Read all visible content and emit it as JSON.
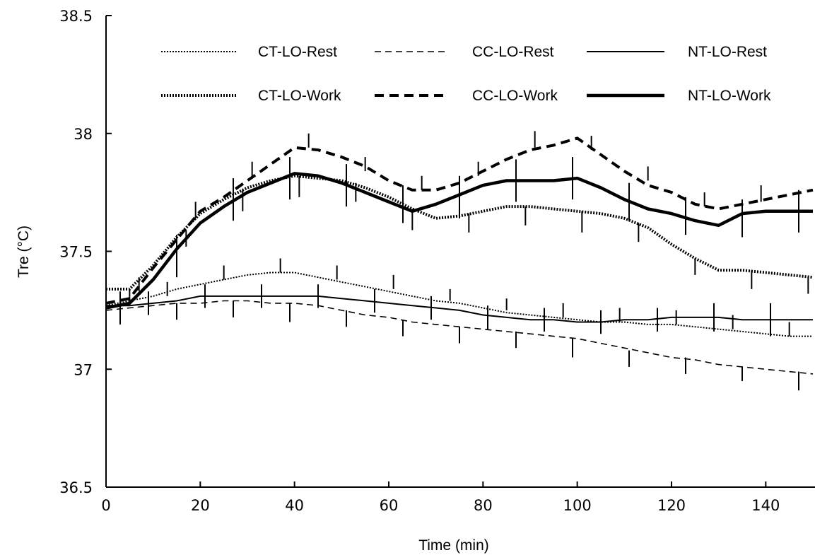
{
  "chart_data": {
    "type": "line",
    "title": "",
    "xlabel": "Time (min)",
    "ylabel": "Tre (°C)",
    "xlim": [
      0,
      150
    ],
    "ylim": [
      36.5,
      38.5
    ],
    "xticks": [
      0,
      20,
      40,
      60,
      80,
      100,
      120,
      140
    ],
    "yticks": [
      36.5,
      37,
      37.5,
      38,
      38.5
    ],
    "xtick_labels": [
      "0",
      "20",
      "40",
      "60",
      "80",
      "100",
      "120",
      "140"
    ],
    "ytick_labels": [
      "36.5",
      "37",
      "37.5",
      "38",
      "38.5"
    ],
    "grid": false,
    "legend": "top",
    "series": [
      {
        "name": "CT-LO-Rest",
        "style": "dotted-thin",
        "color": "#000000",
        "x": [
          0,
          5,
          10,
          15,
          20,
          25,
          30,
          35,
          40,
          45,
          50,
          55,
          60,
          65,
          70,
          75,
          80,
          85,
          90,
          95,
          100,
          105,
          110,
          115,
          120,
          125,
          130,
          135,
          140,
          145,
          150
        ],
        "y": [
          37.27,
          37.29,
          37.31,
          37.34,
          37.36,
          37.38,
          37.4,
          37.41,
          37.41,
          37.39,
          37.37,
          37.35,
          37.33,
          37.31,
          37.29,
          37.28,
          37.26,
          37.24,
          37.23,
          37.22,
          37.21,
          37.2,
          37.2,
          37.19,
          37.19,
          37.18,
          37.17,
          37.16,
          37.15,
          37.14,
          37.14
        ]
      },
      {
        "name": "CC-LO-Rest",
        "style": "dashed-thin",
        "color": "#000000",
        "x": [
          0,
          5,
          10,
          15,
          20,
          25,
          30,
          35,
          40,
          45,
          50,
          55,
          60,
          65,
          70,
          75,
          80,
          85,
          90,
          95,
          100,
          105,
          110,
          115,
          120,
          125,
          130,
          135,
          140,
          145,
          150
        ],
        "y": [
          37.25,
          37.26,
          37.27,
          37.28,
          37.28,
          37.29,
          37.29,
          37.28,
          37.28,
          37.27,
          37.25,
          37.23,
          37.22,
          37.2,
          37.19,
          37.18,
          37.17,
          37.16,
          37.15,
          37.14,
          37.13,
          37.11,
          37.09,
          37.07,
          37.05,
          37.04,
          37.02,
          37.01,
          37.0,
          36.99,
          36.98
        ]
      },
      {
        "name": "NT-LO-Rest",
        "style": "solid-thin",
        "color": "#000000",
        "x": [
          0,
          5,
          10,
          15,
          20,
          25,
          30,
          35,
          40,
          45,
          50,
          55,
          60,
          65,
          70,
          75,
          80,
          85,
          90,
          95,
          100,
          105,
          110,
          115,
          120,
          125,
          130,
          135,
          140,
          145,
          150
        ],
        "y": [
          37.27,
          37.27,
          37.28,
          37.29,
          37.31,
          37.31,
          37.31,
          37.31,
          37.31,
          37.31,
          37.3,
          37.29,
          37.28,
          37.27,
          37.26,
          37.25,
          37.23,
          37.22,
          37.21,
          37.21,
          37.2,
          37.2,
          37.21,
          37.21,
          37.22,
          37.22,
          37.22,
          37.21,
          37.21,
          37.21,
          37.21
        ]
      },
      {
        "name": "CT-LO-Work",
        "style": "dotted-thick",
        "color": "#000000",
        "x": [
          0,
          5,
          10,
          15,
          20,
          25,
          30,
          35,
          40,
          45,
          50,
          55,
          60,
          65,
          70,
          75,
          80,
          85,
          90,
          95,
          100,
          105,
          110,
          115,
          120,
          125,
          130,
          135,
          140,
          145,
          150
        ],
        "y": [
          37.34,
          37.34,
          37.44,
          37.56,
          37.66,
          37.72,
          37.77,
          37.8,
          37.82,
          37.81,
          37.8,
          37.77,
          37.73,
          37.68,
          37.64,
          37.65,
          37.67,
          37.69,
          37.69,
          37.68,
          37.67,
          37.66,
          37.64,
          37.6,
          37.53,
          37.47,
          37.42,
          37.42,
          37.41,
          37.4,
          37.39
        ]
      },
      {
        "name": "CC-LO-Work",
        "style": "dashed-thick",
        "color": "#000000",
        "x": [
          0,
          5,
          10,
          15,
          20,
          25,
          30,
          35,
          40,
          45,
          50,
          55,
          60,
          65,
          70,
          75,
          80,
          85,
          90,
          95,
          100,
          105,
          110,
          115,
          120,
          125,
          130,
          135,
          140,
          145,
          150
        ],
        "y": [
          37.28,
          37.3,
          37.43,
          37.55,
          37.67,
          37.73,
          37.8,
          37.87,
          37.94,
          37.93,
          37.9,
          37.86,
          37.8,
          37.76,
          37.76,
          37.79,
          37.84,
          37.89,
          37.93,
          37.95,
          37.98,
          37.91,
          37.84,
          37.78,
          37.75,
          37.7,
          37.68,
          37.7,
          37.72,
          37.74,
          37.76
        ]
      },
      {
        "name": "NT-LO-Work",
        "style": "solid-thick",
        "color": "#000000",
        "x": [
          0,
          5,
          10,
          15,
          20,
          25,
          30,
          35,
          40,
          45,
          50,
          55,
          60,
          65,
          70,
          75,
          80,
          85,
          90,
          95,
          100,
          105,
          110,
          115,
          120,
          125,
          130,
          135,
          140,
          145,
          150
        ],
        "y": [
          37.26,
          37.28,
          37.38,
          37.51,
          37.62,
          37.69,
          37.75,
          37.79,
          37.83,
          37.82,
          37.79,
          37.75,
          37.71,
          37.67,
          37.7,
          37.74,
          37.78,
          37.8,
          37.8,
          37.8,
          37.81,
          37.77,
          37.72,
          37.68,
          37.66,
          37.63,
          37.61,
          37.66,
          37.67,
          37.67,
          37.67
        ]
      }
    ],
    "error_bars": [
      {
        "series": "CT-LO-Rest",
        "x": [
          13,
          25,
          37,
          49,
          61,
          73,
          85,
          97,
          109,
          121,
          133,
          145
        ],
        "y": [
          37.31,
          37.38,
          37.41,
          37.38,
          37.34,
          37.29,
          37.25,
          37.22,
          37.2,
          37.19,
          37.17,
          37.14
        ],
        "dir": "up",
        "len": [
          0.06,
          0.06,
          0.06,
          0.06,
          0.06,
          0.05,
          0.05,
          0.06,
          0.06,
          0.06,
          0.06,
          0.06
        ]
      },
      {
        "series": "CC-LO-Rest",
        "x": [
          3,
          15,
          27,
          39,
          51,
          63,
          75,
          87,
          99,
          111,
          123,
          135,
          147
        ],
        "y": [
          37.26,
          37.28,
          37.29,
          37.28,
          37.25,
          37.21,
          37.18,
          37.16,
          37.13,
          37.08,
          37.05,
          37.01,
          36.99
        ],
        "dir": "down",
        "len": [
          0.07,
          0.07,
          0.07,
          0.08,
          0.07,
          0.07,
          0.07,
          0.07,
          0.08,
          0.07,
          0.07,
          0.06,
          0.08
        ]
      },
      {
        "series": "NT-LO-Rest",
        "x": [
          9,
          21,
          33,
          45,
          57,
          69,
          81,
          93,
          105,
          117,
          129,
          141
        ],
        "y": [
          37.28,
          37.31,
          37.31,
          37.31,
          37.29,
          37.26,
          37.22,
          37.21,
          37.2,
          37.21,
          37.22,
          37.21
        ],
        "dir": "both",
        "len": [
          0.05,
          0.05,
          0.05,
          0.05,
          0.05,
          0.05,
          0.05,
          0.05,
          0.05,
          0.05,
          0.06,
          0.07
        ]
      },
      {
        "series": "CT-LO-Work",
        "x": [
          5,
          17,
          29,
          41,
          53,
          65,
          77,
          89,
          101,
          113,
          125,
          137,
          149
        ],
        "y": [
          37.34,
          37.59,
          37.76,
          37.82,
          37.79,
          37.68,
          37.66,
          37.69,
          37.67,
          37.62,
          37.47,
          37.42,
          37.39
        ],
        "dir": "down",
        "len": [
          0.05,
          0.07,
          0.09,
          0.09,
          0.08,
          0.09,
          0.08,
          0.08,
          0.09,
          0.08,
          0.07,
          0.08,
          0.07
        ]
      },
      {
        "series": "CC-LO-Work",
        "x": [
          7,
          19,
          31,
          43,
          55,
          67,
          79,
          91,
          103,
          115,
          127,
          139
        ],
        "y": [
          37.33,
          37.64,
          37.81,
          37.94,
          37.84,
          37.76,
          37.82,
          37.94,
          37.93,
          37.8,
          37.69,
          37.71
        ],
        "dir": "up",
        "len": [
          0.06,
          0.07,
          0.07,
          0.06,
          0.06,
          0.06,
          0.06,
          0.07,
          0.06,
          0.06,
          0.06,
          0.07
        ]
      },
      {
        "series": "NT-LO-Work",
        "x": [
          3,
          15,
          27,
          39,
          51,
          63,
          75,
          87,
          99,
          111,
          123,
          135,
          147
        ],
        "y": [
          37.27,
          37.48,
          37.72,
          37.81,
          37.78,
          37.7,
          37.73,
          37.8,
          37.81,
          37.71,
          37.65,
          37.64,
          37.67
        ],
        "dir": "both",
        "len": [
          0.06,
          0.09,
          0.09,
          0.09,
          0.09,
          0.08,
          0.09,
          0.09,
          0.09,
          0.08,
          0.08,
          0.08,
          0.09
        ]
      }
    ]
  }
}
